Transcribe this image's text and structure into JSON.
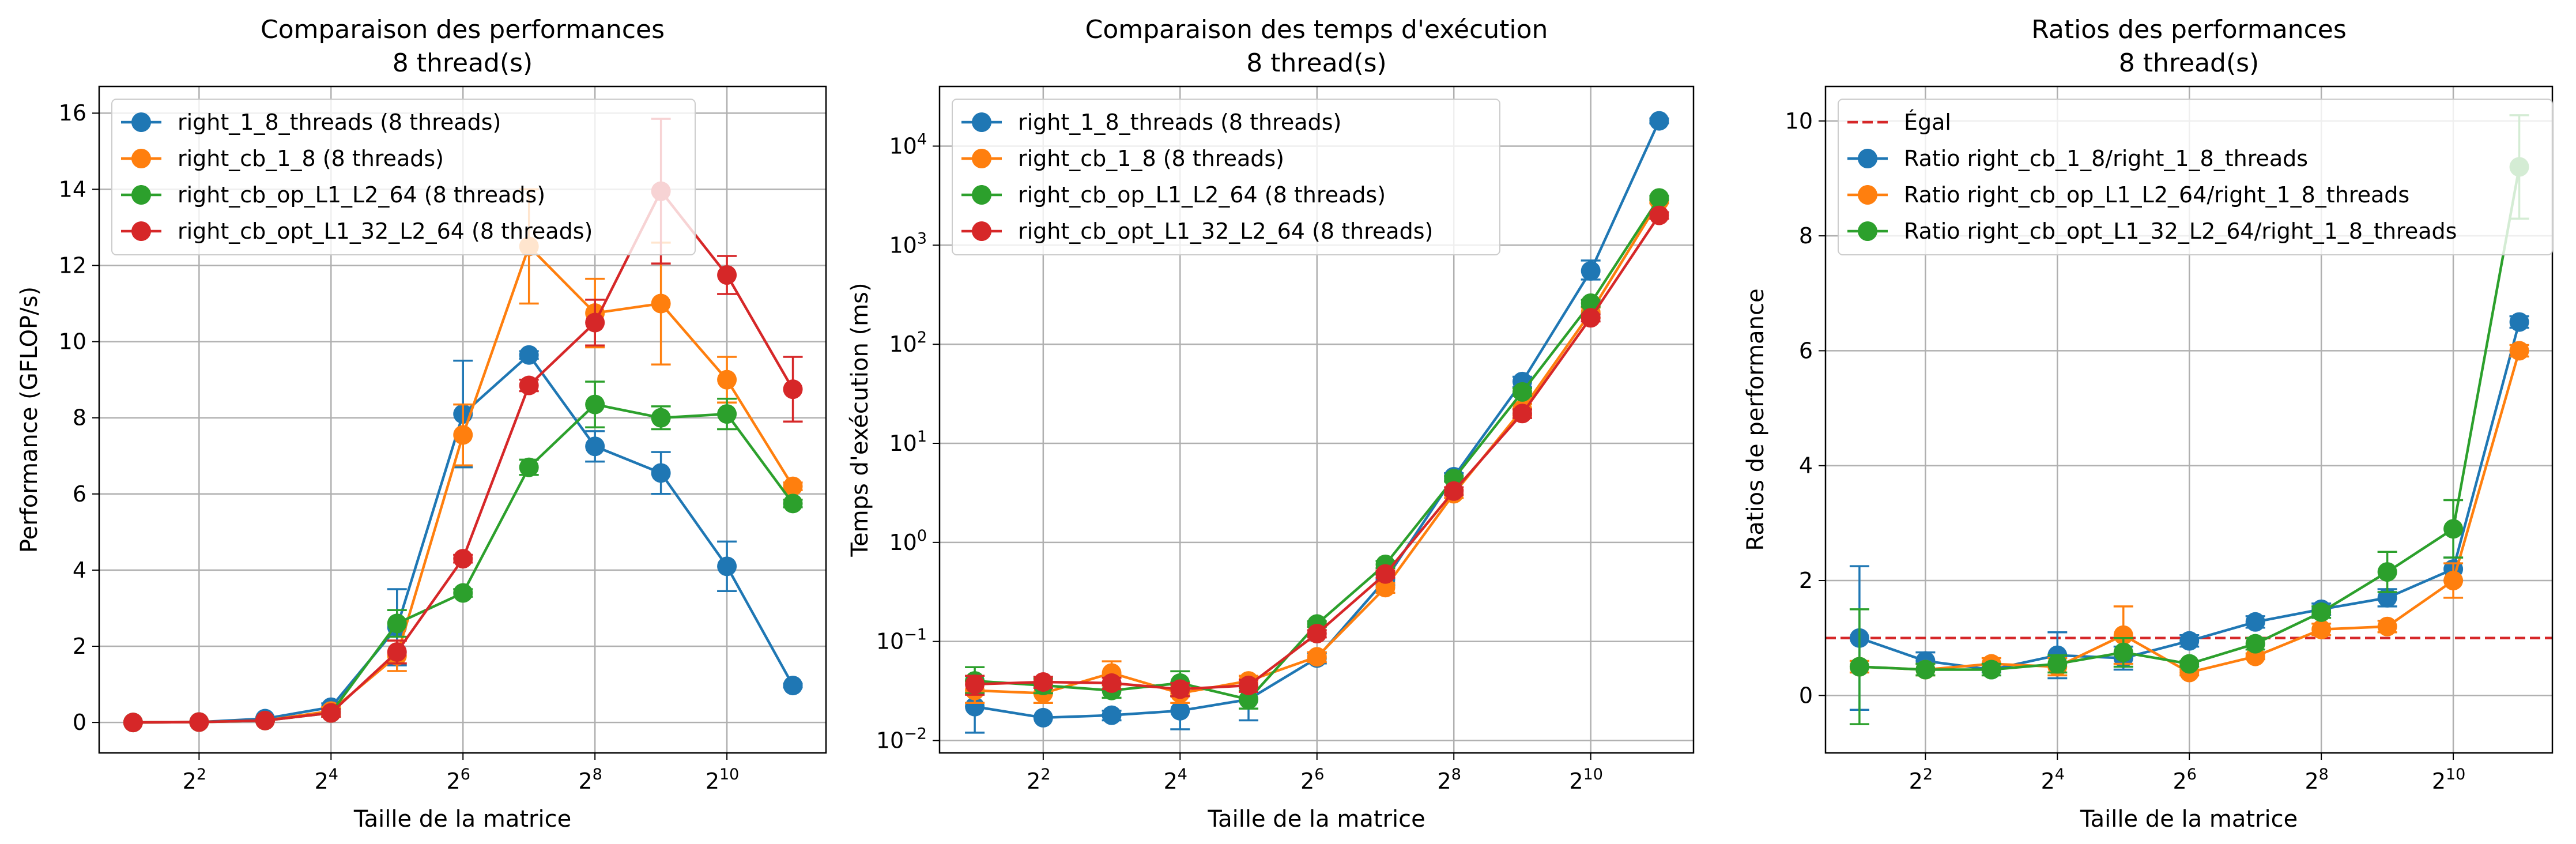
{
  "colors": {
    "blue": "#1f77b4",
    "orange": "#ff7f0e",
    "green": "#2ca02c",
    "red": "#d62728",
    "grid": "#b0b0b0"
  },
  "chart_data": [
    {
      "type": "line",
      "title": "Comparaison des performances",
      "subtitle": "8 thread(s)",
      "xlabel": "Taille de la matrice",
      "ylabel": "Performance (GFLOP/s)",
      "xscale": "log2",
      "x": [
        2,
        4,
        8,
        16,
        32,
        64,
        128,
        256,
        512,
        1024,
        2048
      ],
      "xlim": [
        1.4,
        2900
      ],
      "ylim": [
        -0.8,
        16.7
      ],
      "xticks": [
        {
          "base": "2",
          "exp": "2"
        },
        {
          "base": "2",
          "exp": "4"
        },
        {
          "base": "2",
          "exp": "6"
        },
        {
          "base": "2",
          "exp": "8"
        },
        {
          "base": "2",
          "exp": "10"
        }
      ],
      "yticks": [
        "0",
        "2",
        "4",
        "6",
        "8",
        "10",
        "12",
        "14",
        "16"
      ],
      "grid": true,
      "legend_position": "upper left",
      "series": [
        {
          "name": "right_1_8_threads (8 threads)",
          "color": "#1f77b4",
          "values": [
            0.0,
            0.01,
            0.1,
            0.4,
            2.5,
            8.1,
            9.65,
            7.25,
            6.55,
            4.1,
            0.97
          ],
          "errors": [
            0.0,
            0.0,
            0.03,
            0.1,
            1.0,
            1.4,
            0.1,
            0.4,
            0.55,
            0.65,
            0.05
          ]
        },
        {
          "name": "right_cb_1_8 (8 threads)",
          "color": "#ff7f0e",
          "values": [
            0.0,
            0.01,
            0.05,
            0.3,
            1.75,
            7.55,
            12.5,
            10.75,
            11.0,
            9.0,
            6.2
          ],
          "errors": [
            0.0,
            0.0,
            0.02,
            0.1,
            0.4,
            0.8,
            1.5,
            0.9,
            1.6,
            0.6,
            0.1
          ]
        },
        {
          "name": "right_cb_op_L1_L2_64 (8 threads)",
          "color": "#2ca02c",
          "values": [
            0.0,
            0.01,
            0.05,
            0.25,
            2.6,
            3.4,
            6.7,
            8.35,
            8.0,
            8.1,
            5.75
          ],
          "errors": [
            0.0,
            0.0,
            0.02,
            0.1,
            0.35,
            0.1,
            0.2,
            0.6,
            0.3,
            0.4,
            0.1
          ]
        },
        {
          "name": "right_cb_opt_L1_32_L2_64 (8 threads)",
          "color": "#d62728",
          "values": [
            0.0,
            0.01,
            0.05,
            0.25,
            1.85,
            4.3,
            8.85,
            10.5,
            13.95,
            11.75,
            8.75
          ],
          "errors": [
            0.0,
            0.0,
            0.02,
            0.1,
            0.3,
            0.1,
            0.15,
            0.6,
            1.9,
            0.5,
            0.85
          ]
        }
      ]
    },
    {
      "type": "line",
      "title": "Comparaison des temps d'exécution",
      "subtitle": "8 thread(s)",
      "xlabel": "Taille de la matrice",
      "ylabel": "Temps d'exécution (ms)",
      "xscale": "log2",
      "yscale": "log10",
      "x": [
        2,
        4,
        8,
        16,
        32,
        64,
        128,
        256,
        512,
        1024,
        2048
      ],
      "xlim": [
        1.4,
        2900
      ],
      "ylim": [
        0.0075,
        40000
      ],
      "xticks": [
        {
          "base": "2",
          "exp": "2"
        },
        {
          "base": "2",
          "exp": "4"
        },
        {
          "base": "2",
          "exp": "6"
        },
        {
          "base": "2",
          "exp": "8"
        },
        {
          "base": "2",
          "exp": "10"
        }
      ],
      "yticks": [
        {
          "value": 0.01,
          "base": "10",
          "exp": "−2"
        },
        {
          "value": 0.1,
          "base": "10",
          "exp": "−1"
        },
        {
          "value": 1,
          "base": "10",
          "exp": "0"
        },
        {
          "value": 10,
          "base": "10",
          "exp": "1"
        },
        {
          "value": 100,
          "base": "10",
          "exp": "2"
        },
        {
          "value": 1000,
          "base": "10",
          "exp": "3"
        },
        {
          "value": 10000,
          "base": "10",
          "exp": "4"
        }
      ],
      "grid": true,
      "legend_position": "upper left",
      "series": [
        {
          "name": "right_1_8_threads (8 threads)",
          "color": "#1f77b4",
          "values": [
            0.022,
            0.017,
            0.018,
            0.02,
            0.026,
            0.068,
            0.42,
            4.6,
            42,
            550,
            18000
          ],
          "errors_low": [
            0.01,
            0.0,
            0.002,
            0.007,
            0.01,
            0.008,
            0.05,
            0.4,
            5,
            100,
            1000
          ],
          "errors_high": [
            0.008,
            0.0,
            0.002,
            0.008,
            0.008,
            0.008,
            0.05,
            0.4,
            5,
            150,
            1000
          ]
        },
        {
          "name": "right_cb_1_8 (8 threads)",
          "color": "#ff7f0e",
          "values": [
            0.032,
            0.03,
            0.048,
            0.03,
            0.04,
            0.07,
            0.35,
            3.1,
            22,
            210,
            2800
          ],
          "errors_low": [
            0.008,
            0.006,
            0.012,
            0.006,
            0.005,
            0.008,
            0.04,
            0.3,
            3,
            25,
            150
          ],
          "errors_high": [
            0.008,
            0.006,
            0.015,
            0.006,
            0.005,
            0.008,
            0.04,
            0.3,
            3,
            25,
            150
          ]
        },
        {
          "name": "right_cb_op_L1_L2_64 (8 threads)",
          "color": "#2ca02c",
          "values": [
            0.04,
            0.036,
            0.032,
            0.038,
            0.026,
            0.15,
            0.6,
            4.4,
            33,
            260,
            3000
          ],
          "errors_low": [
            0.01,
            0.006,
            0.005,
            0.01,
            0.005,
            0.01,
            0.05,
            0.3,
            3,
            20,
            150
          ],
          "errors_high": [
            0.015,
            0.006,
            0.006,
            0.012,
            0.006,
            0.01,
            0.05,
            0.3,
            3,
            20,
            150
          ]
        },
        {
          "name": "right_cb_opt_L1_32_L2_64 (8 threads)",
          "color": "#d62728",
          "values": [
            0.037,
            0.039,
            0.038,
            0.033,
            0.036,
            0.12,
            0.48,
            3.3,
            20,
            185,
            2000
          ],
          "errors_low": [
            0.008,
            0.005,
            0.005,
            0.005,
            0.005,
            0.01,
            0.04,
            0.3,
            2,
            15,
            150
          ],
          "errors_high": [
            0.008,
            0.005,
            0.005,
            0.005,
            0.005,
            0.01,
            0.04,
            0.3,
            2,
            15,
            150
          ]
        }
      ]
    },
    {
      "type": "line",
      "title": "Ratios des performances",
      "subtitle": "8 thread(s)",
      "xlabel": "Taille de la matrice",
      "ylabel": "Ratios de performance",
      "xscale": "log2",
      "x": [
        2,
        4,
        8,
        16,
        32,
        64,
        128,
        256,
        512,
        1024,
        2048
      ],
      "xlim": [
        1.4,
        2900
      ],
      "ylim": [
        -1.0,
        10.6
      ],
      "xticks": [
        {
          "base": "2",
          "exp": "2"
        },
        {
          "base": "2",
          "exp": "4"
        },
        {
          "base": "2",
          "exp": "6"
        },
        {
          "base": "2",
          "exp": "8"
        },
        {
          "base": "2",
          "exp": "10"
        }
      ],
      "yticks": [
        "0",
        "2",
        "4",
        "6",
        "8",
        "10"
      ],
      "grid": true,
      "legend_position": "upper left",
      "reference_line": {
        "name": "Égal",
        "y": 1.0,
        "color": "#d62728",
        "style": "dashed"
      },
      "series": [
        {
          "name": "Ratio right_cb_1_8/right_1_8_threads",
          "color": "#1f77b4",
          "values": [
            1.0,
            0.6,
            0.45,
            0.7,
            0.65,
            0.95,
            1.28,
            1.5,
            1.7,
            2.2,
            6.5
          ],
          "errors": [
            1.25,
            0.15,
            0.05,
            0.4,
            0.2,
            0.1,
            0.1,
            0.1,
            0.15,
            0.2,
            0.1
          ]
        },
        {
          "name": "Ratio right_cb_op_L1_L2_64/right_1_8_threads",
          "color": "#ff7f0e",
          "values": [
            0.5,
            0.45,
            0.55,
            0.5,
            1.05,
            0.4,
            0.68,
            1.15,
            1.2,
            2.0,
            6.0
          ],
          "errors": [
            0.1,
            0.1,
            0.1,
            0.15,
            0.5,
            0.05,
            0.05,
            0.1,
            0.1,
            0.3,
            0.1
          ]
        },
        {
          "name": "Ratio right_cb_opt_L1_32_L2_64/right_1_8_threads",
          "color": "#2ca02c",
          "values": [
            0.5,
            0.45,
            0.45,
            0.55,
            0.75,
            0.55,
            0.9,
            1.45,
            2.15,
            2.9,
            9.2
          ],
          "errors": [
            1.0,
            0.1,
            0.1,
            0.15,
            0.25,
            0.05,
            0.1,
            0.1,
            0.35,
            0.5,
            0.9
          ]
        }
      ]
    }
  ]
}
